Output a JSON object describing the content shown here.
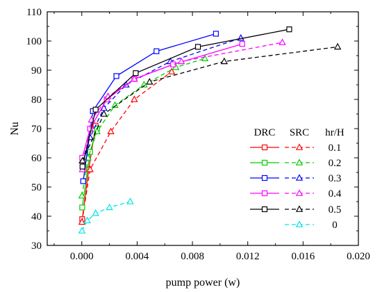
{
  "chart_data": {
    "type": "line",
    "title": "",
    "xlabel": "pump power (w)",
    "ylabel": "Nu",
    "xlim": [
      -0.0025,
      0.02
    ],
    "ylim": [
      30,
      110
    ],
    "xticks": [
      0.0,
      0.004,
      0.008,
      0.012,
      0.016,
      0.02
    ],
    "xtick_labels": [
      "0.000",
      "0.004",
      "0.008",
      "0.012",
      "0.016",
      "0.020"
    ],
    "yticks": [
      30,
      40,
      50,
      60,
      70,
      80,
      90,
      100,
      110
    ],
    "ytick_labels": [
      "30",
      "40",
      "50",
      "60",
      "70",
      "80",
      "90",
      "100",
      "110"
    ],
    "grid": false,
    "legend": {
      "placement": "bottom-right",
      "headers": [
        "DRC",
        "SRC",
        "hr/H"
      ],
      "rows": [
        "0.1",
        "0.2",
        "0.3",
        "0.4",
        "0.5",
        "0"
      ]
    },
    "series": [
      {
        "name": "DRC 0.1",
        "color": "#ff0000",
        "marker": "square",
        "dash": "solid",
        "x": [
          3e-05,
          0.0005,
          0.001
        ],
        "y": [
          39,
          56,
          71
        ]
      },
      {
        "name": "SRC 0.1",
        "color": "#ff0000",
        "marker": "triangle",
        "dash": "dashed",
        "x": [
          1e-05,
          0.0006,
          0.0021,
          0.0038,
          0.0065
        ],
        "y": [
          38,
          56,
          69,
          80,
          89.5
        ]
      },
      {
        "name": "DRC 0.2",
        "color": "#00cc00",
        "marker": "square",
        "dash": "solid",
        "x": [
          3e-05,
          0.0006,
          0.0011
        ],
        "y": [
          43,
          62,
          70
        ]
      },
      {
        "name": "SRC 0.2",
        "color": "#00cc00",
        "marker": "triangle",
        "dash": "dashed",
        "x": [
          1e-05,
          0.00045,
          0.0011,
          0.0024,
          0.0045,
          0.0068,
          0.0089
        ],
        "y": [
          47,
          60,
          69,
          78,
          85,
          91,
          94
        ]
      },
      {
        "name": "DRC 0.3",
        "color": "#0000ff",
        "marker": "square",
        "dash": "solid",
        "x": [
          0.0001,
          0.0008,
          0.0025,
          0.0054,
          0.0097
        ],
        "y": [
          52,
          76,
          88,
          96.5,
          102.5
        ]
      },
      {
        "name": "SRC 0.3",
        "color": "#0000ff",
        "marker": "triangle",
        "dash": "dashed",
        "x": [
          3e-05,
          0.0006,
          0.0016,
          0.0032,
          0.0064,
          0.0115
        ],
        "y": [
          59,
          67,
          77,
          85,
          93,
          101
        ]
      },
      {
        "name": "DRC 0.4",
        "color": "#ff00ff",
        "marker": "square",
        "dash": "solid",
        "x": [
          3e-05,
          0.0006,
          0.0018,
          0.0038,
          0.0066,
          0.0116
        ],
        "y": [
          60,
          70,
          80,
          87,
          92,
          99
        ]
      },
      {
        "name": "SRC 0.4",
        "color": "#ff00ff",
        "marker": "triangle",
        "dash": "dashed",
        "x": [
          4e-05,
          0.0007,
          0.0019,
          0.0038,
          0.0072,
          0.0145
        ],
        "y": [
          56,
          73,
          81,
          87,
          93,
          99.5
        ]
      },
      {
        "name": "DRC 0.5",
        "color": "#000000",
        "marker": "square",
        "dash": "solid",
        "x": [
          5e-05,
          0.001,
          0.0039,
          0.0084,
          0.015
        ],
        "y": [
          57,
          76.5,
          89,
          98,
          104
        ]
      },
      {
        "name": "SRC 0.5",
        "color": "#000000",
        "marker": "triangle",
        "dash": "dashed",
        "x": [
          5e-05,
          0.0016,
          0.0049,
          0.0103,
          0.0185
        ],
        "y": [
          59,
          75,
          86,
          93,
          98
        ]
      },
      {
        "name": "SRC 0",
        "color": "#00e5e5",
        "marker": "triangle",
        "dash": "dashed",
        "x": [
          1e-05,
          0.0004,
          0.001,
          0.002,
          0.0035
        ],
        "y": [
          35,
          38.5,
          41,
          43,
          45
        ]
      }
    ]
  }
}
